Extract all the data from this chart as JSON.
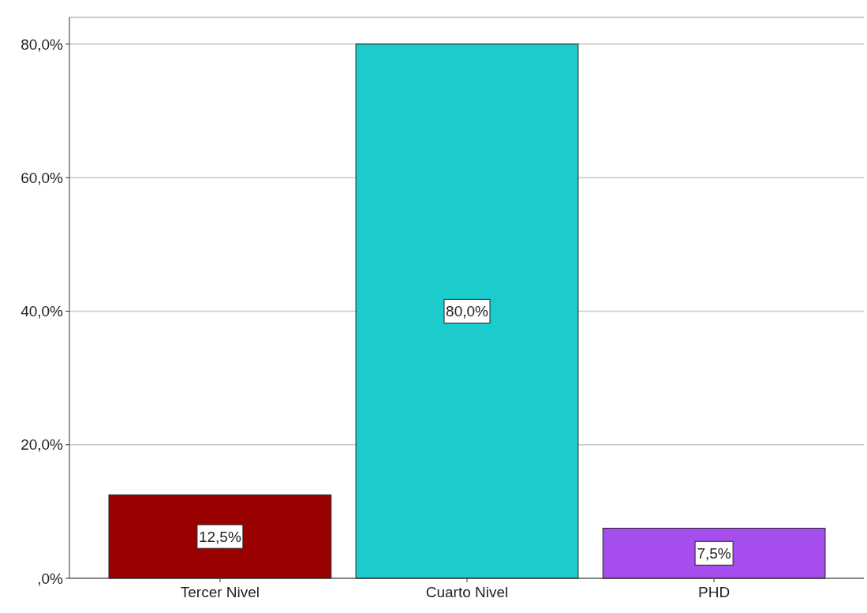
{
  "chart_data": {
    "type": "bar",
    "categories": [
      "Tercer Nivel",
      "Cuarto Nivel",
      "PHD"
    ],
    "values": [
      12.5,
      80.0,
      7.5
    ],
    "colors": [
      "#990000",
      "#1ccccc",
      "#a64dee"
    ],
    "value_labels": [
      "12,5%",
      "80,0%",
      "7,5%"
    ],
    "ylim": [
      0,
      84
    ],
    "yticks": [
      {
        "value": 0,
        "label": ",0%"
      },
      {
        "value": 20,
        "label": "20,0%"
      },
      {
        "value": 40,
        "label": "40,0%"
      },
      {
        "value": 60,
        "label": "60,0%"
      },
      {
        "value": 80,
        "label": "80,0%"
      }
    ],
    "grid": "y"
  }
}
